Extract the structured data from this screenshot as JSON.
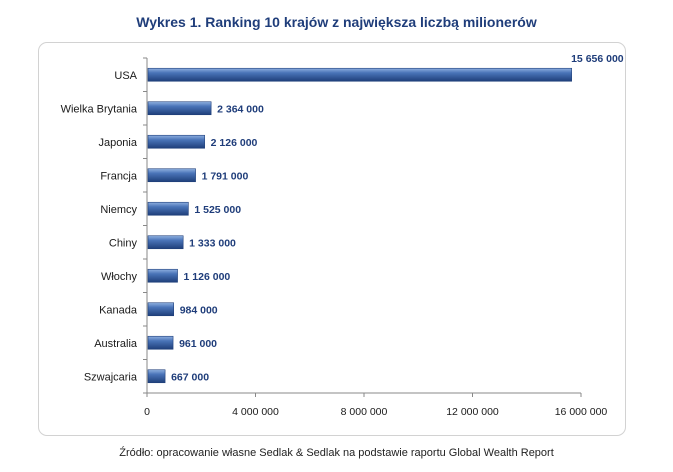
{
  "chart_data": {
    "type": "bar",
    "orientation": "horizontal",
    "title": "Wykres 1. Ranking 10 krajów z największa liczbą milionerów",
    "categories": [
      "USA",
      "Wielka Brytania",
      "Japonia",
      "Francja",
      "Niemcy",
      "Chiny",
      "Włochy",
      "Kanada",
      "Australia",
      "Szwajcaria"
    ],
    "values": [
      15656000,
      2364000,
      2126000,
      1791000,
      1525000,
      1333000,
      1126000,
      984000,
      961000,
      667000
    ],
    "value_labels": [
      "15 656 000",
      "2 364 000",
      "2 126 000",
      "1 791 000",
      "1 525 000",
      "1 333 000",
      "1 126 000",
      "984 000",
      "961 000",
      "667 000"
    ],
    "xlim": [
      0,
      16000000
    ],
    "xticks": [
      0,
      4000000,
      8000000,
      12000000,
      16000000
    ],
    "xtick_labels": [
      "0",
      "4 000 000",
      "8 000 000",
      "12 000 000",
      "16 000 000"
    ],
    "xlabel": "",
    "ylabel": "",
    "grid": false,
    "legend": false,
    "bar_color": "#4a74b8",
    "bar_color_dark": "#1f3f7a",
    "label_color": "#1f3d7a"
  },
  "source_note": "Źródło: opracowanie własne Sedlak & Sedlak na podstawie raportu Global Wealth Report"
}
